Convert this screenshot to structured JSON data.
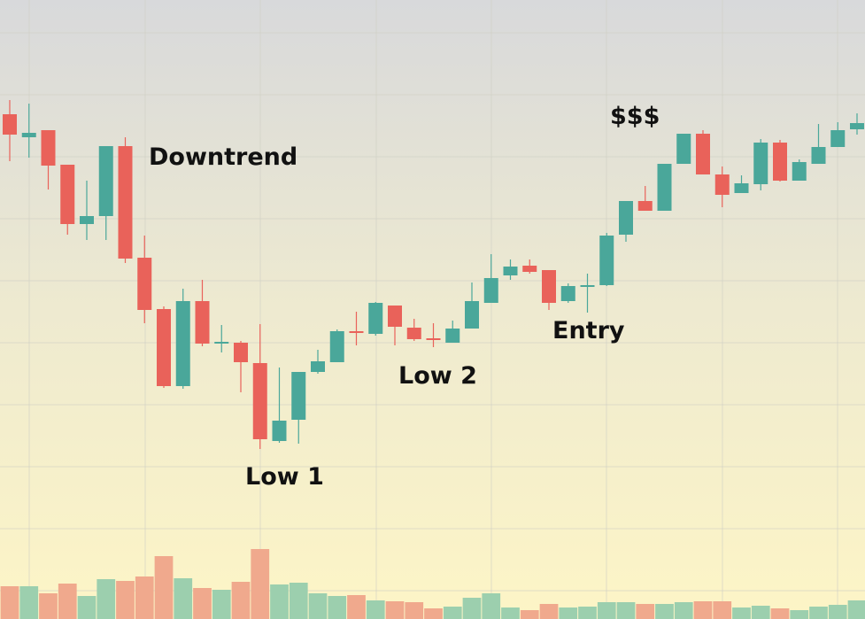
{
  "chart_data": {
    "type": "candlestick",
    "annotations": [
      "Downtrend",
      "Low 1",
      "Low 2",
      "Entry",
      "$$$"
    ],
    "open": [
      570,
      544,
      552,
      513,
      446,
      455,
      534,
      408,
      350,
      263,
      359,
      312,
      312,
      289,
      201,
      225,
      279,
      290,
      325,
      322,
      354,
      329,
      317,
      312,
      328,
      357,
      388,
      399,
      394,
      359,
      375,
      377,
      434,
      472,
      461,
      514,
      548,
      502,
      481,
      491,
      538,
      495,
      514,
      533,
      553
    ],
    "high": [
      586,
      582,
      552,
      513,
      495,
      534,
      544,
      433,
      353,
      373,
      383,
      332,
      314,
      333,
      284,
      279,
      304,
      327,
      347,
      358,
      354,
      339,
      334,
      337,
      380,
      412,
      406,
      406,
      394,
      379,
      390,
      436,
      472,
      489,
      514,
      548,
      552,
      511,
      501,
      542,
      541,
      519,
      559,
      561,
      571
    ],
    "low": [
      517,
      521,
      485,
      434,
      428,
      428,
      402,
      334,
      261,
      260,
      308,
      301,
      256,
      192,
      199,
      198,
      277,
      290,
      309,
      320,
      309,
      314,
      307,
      312,
      328,
      357,
      383,
      390,
      349,
      357,
      346,
      376,
      426,
      461,
      461,
      514,
      502,
      465,
      481,
      484,
      494,
      495,
      514,
      533,
      547
    ],
    "close": [
      547,
      549,
      512,
      446,
      455,
      534,
      407,
      349,
      263,
      359,
      311,
      313,
      290,
      203,
      224,
      279,
      291,
      325,
      323,
      357,
      330,
      316,
      315,
      328,
      359,
      385,
      398,
      392,
      357,
      376,
      377,
      433,
      472,
      461,
      514,
      548,
      502,
      479,
      492,
      538,
      495,
      516,
      533,
      552,
      560
    ],
    "volume": [
      37,
      37,
      29,
      40,
      26,
      45,
      43,
      48,
      71,
      46,
      35,
      33,
      42,
      79,
      39,
      41,
      29,
      26,
      27,
      21,
      20,
      19,
      12,
      14,
      24,
      29,
      13,
      10,
      17,
      13,
      14,
      19,
      19,
      17,
      17,
      19,
      20,
      20,
      13,
      15,
      12,
      10,
      14,
      16,
      21
    ],
    "ylim": [
      0,
      699
    ],
    "volume_ylim": [
      0,
      699
    ],
    "up_color": "#4aa79a",
    "down_color": "#e9625a",
    "volume_up_color": "#9ccfae",
    "volume_down_color": "#f0a98d"
  }
}
